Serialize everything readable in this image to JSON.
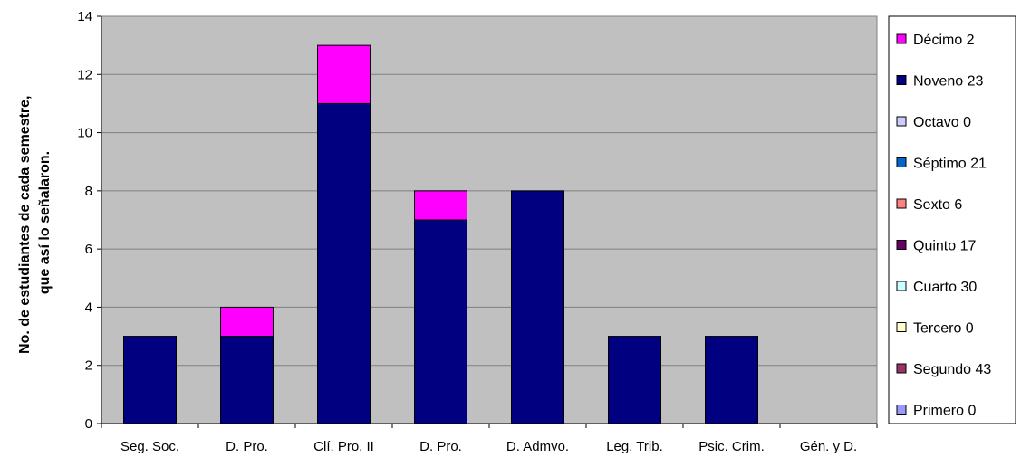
{
  "chart_data": {
    "type": "bar",
    "stacked": true,
    "categories": [
      "Seg. Soc.",
      "D. Pro.",
      "Clí. Pro. II",
      "D. Pro.",
      "D. Admvo.",
      "Leg. Trib.",
      "Psic. Crim.",
      "Gén. y D."
    ],
    "series": [
      {
        "name": "Primero 0",
        "color": "#9999ff",
        "values": [
          0,
          0,
          0,
          0,
          0,
          0,
          0,
          0
        ]
      },
      {
        "name": "Segundo 43",
        "color": "#993366",
        "values": [
          0,
          0,
          0,
          0,
          0,
          0,
          0,
          0
        ]
      },
      {
        "name": "Tercero 0",
        "color": "#ffffcc",
        "values": [
          0,
          0,
          0,
          0,
          0,
          0,
          0,
          0
        ]
      },
      {
        "name": "Cuarto 30",
        "color": "#ccffff",
        "values": [
          0,
          0,
          0,
          0,
          0,
          0,
          0,
          0
        ]
      },
      {
        "name": "Quinto 17",
        "color": "#660066",
        "values": [
          0,
          0,
          0,
          0,
          0,
          0,
          0,
          0
        ]
      },
      {
        "name": "Sexto 6",
        "color": "#ff8080",
        "values": [
          0,
          0,
          0,
          0,
          0,
          0,
          0,
          0
        ]
      },
      {
        "name": "Séptimo 21",
        "color": "#0066cc",
        "values": [
          0,
          0,
          0,
          0,
          0,
          0,
          0,
          0
        ]
      },
      {
        "name": "Octavo 0",
        "color": "#ccccff",
        "values": [
          0,
          0,
          0,
          0,
          0,
          0,
          0,
          0
        ]
      },
      {
        "name": "Noveno 23",
        "color": "#000080",
        "values": [
          3,
          3,
          11,
          7,
          8,
          3,
          3,
          0
        ]
      },
      {
        "name": "Décimo 2",
        "color": "#ff00ff",
        "values": [
          0,
          1,
          2,
          1,
          0,
          0,
          0,
          0
        ]
      }
    ],
    "legend_order": [
      "Décimo 2",
      "Noveno 23",
      "Octavo 0",
      "Séptimo 21",
      "Sexto 6",
      "Quinto 17",
      "Cuarto 30",
      "Tercero 0",
      "Segundo 43",
      "Primero 0"
    ],
    "ylabel": "No. de estudiantes de cada semestre, que así lo señalaron.",
    "ylabel_lines": [
      "No. de estudiantes de cada semestre,",
      "que así lo señalaron."
    ],
    "xlabel": "",
    "ylim": [
      0,
      14
    ],
    "yticks": [
      0,
      2,
      4,
      6,
      8,
      10,
      12,
      14
    ],
    "plot_background": "#c0c0c0",
    "grid": true,
    "legend_position": "right"
  }
}
